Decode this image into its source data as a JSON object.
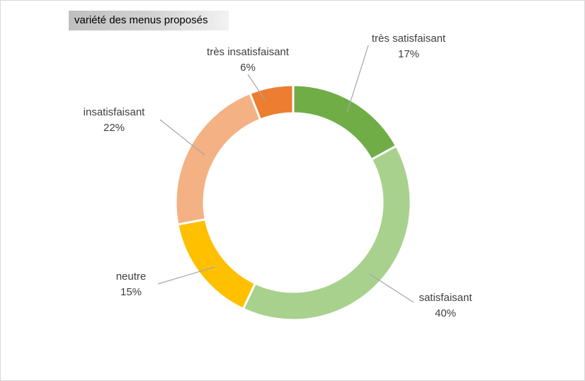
{
  "chart_data": {
    "type": "pie",
    "style": "donut",
    "title": "variété des menus proposés",
    "categories": [
      "très satisfaisant",
      "satisfaisant",
      "neutre",
      "insatisfaisant",
      "très insatisfaisant"
    ],
    "values": [
      17,
      40,
      15,
      22,
      6
    ],
    "value_labels": [
      "17%",
      "40%",
      "15%",
      "22%",
      "6%"
    ],
    "colors": [
      "#70ad47",
      "#a9d18e",
      "#ffc000",
      "#f4b183",
      "#ed7d31"
    ],
    "legend": "none",
    "data_labels": "outside with leader lines"
  }
}
